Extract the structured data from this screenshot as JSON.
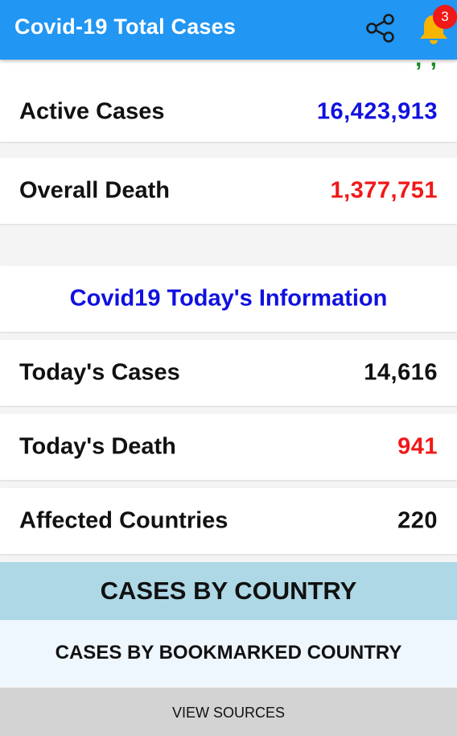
{
  "appbar": {
    "title": "Covid-19 Total Cases",
    "share_icon": "share-icon",
    "bell_icon": "bell-icon",
    "notification_count": "3",
    "color": "#2196f3"
  },
  "totals": {
    "active_cases": {
      "label": "Active Cases",
      "value": "16,423,913",
      "color": "#1010e0"
    },
    "overall_death": {
      "label": "Overall Death",
      "value": "1,377,751",
      "color": "#f01818"
    }
  },
  "today": {
    "heading": "Covid19 Today's Information",
    "rows": [
      {
        "label": "Today's Cases",
        "value": "14,616",
        "color": "#111111"
      },
      {
        "label": "Today's Death",
        "value": "941",
        "color": "#f01818"
      },
      {
        "label": "Affected Countries",
        "value": "220",
        "color": "#111111"
      }
    ]
  },
  "buttons": {
    "cases_by_country": "CASES BY COUNTRY",
    "cases_by_bookmarked_country": "CASES BY BOOKMARKED COUNTRY",
    "view_sources": "VIEW SOURCES"
  }
}
